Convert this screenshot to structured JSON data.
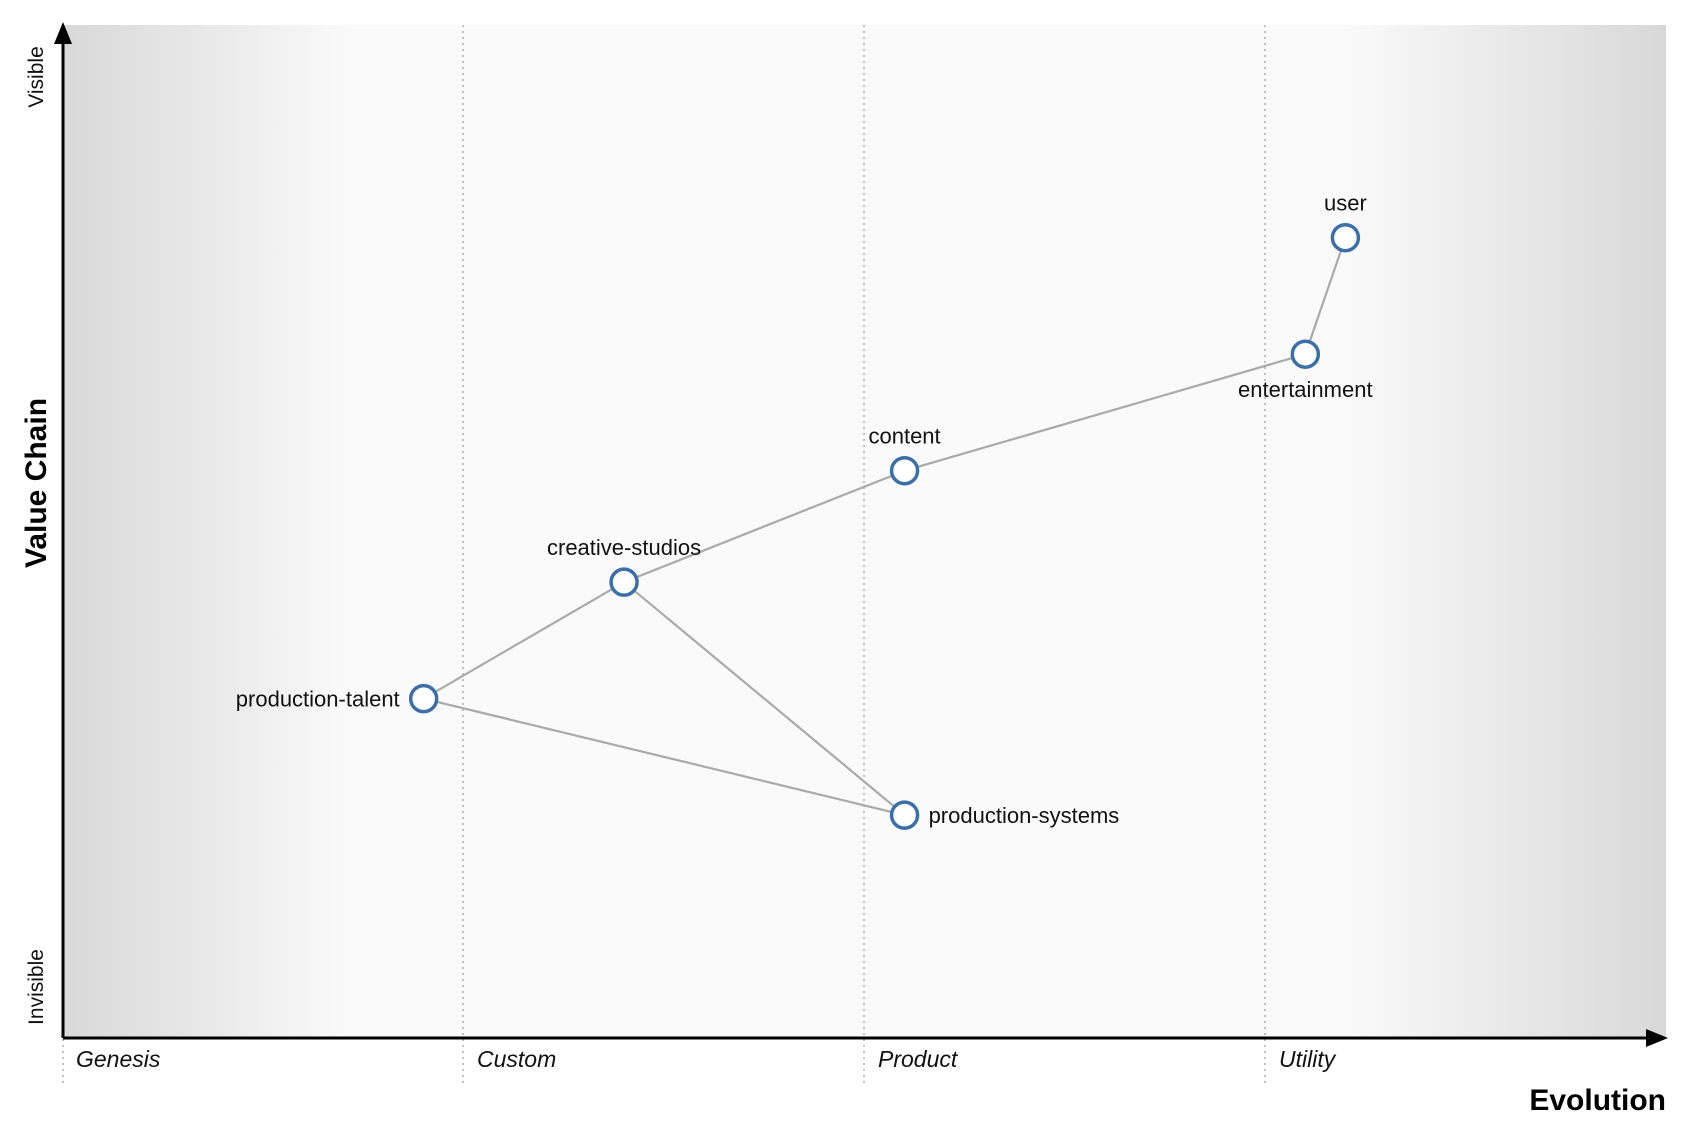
{
  "map": {
    "axes": {
      "x_title": "Evolution",
      "y_title": "Value Chain",
      "y_top": "Visible",
      "y_bottom": "Invisible"
    },
    "stages": [
      "Genesis",
      "Custom",
      "Product",
      "Utility"
    ],
    "components": [
      {
        "id": "user",
        "label": "user",
        "evolution": 0.8,
        "visibility": 0.79
      },
      {
        "id": "entertainment",
        "label": "entertainment",
        "evolution": 0.775,
        "visibility": 0.675
      },
      {
        "id": "content",
        "label": "content",
        "evolution": 0.525,
        "visibility": 0.56
      },
      {
        "id": "creative-studios",
        "label": "creative-studios",
        "evolution": 0.35,
        "visibility": 0.45
      },
      {
        "id": "production-talent",
        "label": "production-talent",
        "evolution": 0.225,
        "visibility": 0.335
      },
      {
        "id": "production-systems",
        "label": "production-systems",
        "evolution": 0.525,
        "visibility": 0.22
      }
    ],
    "links": [
      [
        "user",
        "entertainment"
      ],
      [
        "entertainment",
        "content"
      ],
      [
        "content",
        "creative-studios"
      ],
      [
        "creative-studios",
        "production-talent"
      ],
      [
        "creative-studios",
        "production-systems"
      ],
      [
        "production-talent",
        "production-systems"
      ]
    ],
    "colors": {
      "node_stroke": "#3b6fa6",
      "link": "#aaaaaa",
      "gradient_edge": "#d8d8d8",
      "gradient_mid": "#fafafa"
    }
  }
}
